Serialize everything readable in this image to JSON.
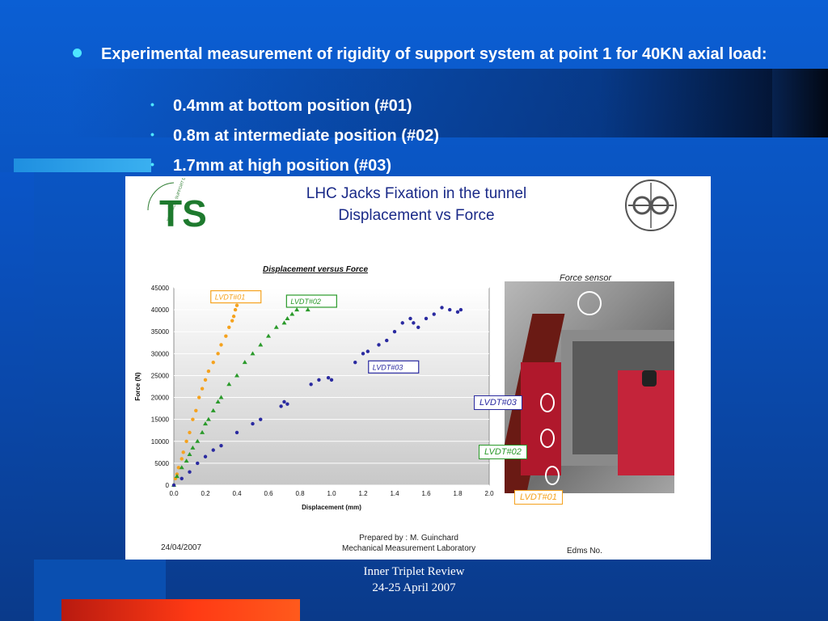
{
  "slide": {
    "bullet": "Experimental measurement of rigidity of support system at point 1 for 40KN axial load:",
    "subs": [
      "0.4mm at bottom position (#01)",
      "0.8m at intermediate position (#02)",
      "1.7mm at high position (#03)"
    ],
    "footer_line1": "Inner Triplet Review",
    "footer_line2": "24-25 April 2007"
  },
  "panel": {
    "logo_text": "TS",
    "logo_ring_text": "TECHNICAL SUPPORT DEPARTMENT",
    "title_line1": "LHC Jacks Fixation in the tunnel",
    "title_line2": "Displacement vs Force",
    "force_sensor_label": "Force sensor",
    "photo_labels": [
      "LVDT#03",
      "LVDT#02",
      "LVDT#01"
    ],
    "date": "24/04/2007",
    "prepared_line1": "Prepared by : M. Guinchard",
    "prepared_line2": "Mechanical Measurement Laboratory",
    "edms": "Edms No."
  },
  "colors": {
    "lvdt01": "#f5a21e",
    "lvdt02": "#2a9a2a",
    "lvdt03": "#2a2aa0",
    "bullet_dot": "#4ee6ff",
    "title": "#1a2a88"
  },
  "chart_data": {
    "type": "scatter",
    "title": "Displacement versus Force",
    "xlabel": "Displacement (mm)",
    "ylabel": "Force (N)",
    "xlim": [
      0.0,
      2.0
    ],
    "ylim": [
      0,
      45000
    ],
    "x_ticks": [
      "0.0",
      "0.2",
      "0.4",
      "0.6",
      "0.8",
      "1.0",
      "1.2",
      "1.4",
      "1.6",
      "1.8",
      "2.0"
    ],
    "y_ticks": [
      "0",
      "5000",
      "10000",
      "15000",
      "20000",
      "25000",
      "30000",
      "35000",
      "40000",
      "45000"
    ],
    "grid": true,
    "series": [
      {
        "name": "LVDT#01",
        "x": [
          0.0,
          0.01,
          0.02,
          0.03,
          0.05,
          0.06,
          0.08,
          0.1,
          0.12,
          0.14,
          0.16,
          0.18,
          0.2,
          0.22,
          0.25,
          0.28,
          0.3,
          0.33,
          0.35,
          0.37,
          0.38,
          0.39,
          0.4
        ],
        "y": [
          0,
          1500,
          2500,
          4000,
          6000,
          7500,
          10000,
          12000,
          15000,
          17000,
          20000,
          22000,
          24000,
          26000,
          28000,
          30000,
          32000,
          34000,
          36000,
          37500,
          38500,
          40000,
          41000
        ]
      },
      {
        "name": "LVDT#02",
        "x": [
          0.0,
          0.02,
          0.05,
          0.08,
          0.1,
          0.12,
          0.15,
          0.18,
          0.2,
          0.22,
          0.25,
          0.28,
          0.3,
          0.35,
          0.4,
          0.45,
          0.5,
          0.55,
          0.6,
          0.65,
          0.7,
          0.72,
          0.75,
          0.78,
          0.8,
          0.85,
          0.88
        ],
        "y": [
          0,
          2000,
          4000,
          5500,
          7000,
          8500,
          10000,
          12000,
          14000,
          15000,
          17000,
          19000,
          20000,
          23000,
          25000,
          28000,
          30000,
          32000,
          34000,
          36000,
          37000,
          38000,
          39000,
          40000,
          41000,
          40000,
          41000
        ]
      },
      {
        "name": "LVDT#03",
        "x": [
          0.0,
          0.05,
          0.1,
          0.15,
          0.2,
          0.25,
          0.3,
          0.4,
          0.5,
          0.55,
          0.68,
          0.7,
          0.72,
          0.87,
          0.92,
          0.98,
          1.0,
          1.15,
          1.2,
          1.23,
          1.3,
          1.35,
          1.4,
          1.45,
          1.5,
          1.52,
          1.55,
          1.6,
          1.65,
          1.7,
          1.75,
          1.8,
          1.82
        ],
        "y": [
          0,
          1500,
          3000,
          5000,
          6500,
          8000,
          9000,
          12000,
          14000,
          15000,
          18000,
          19000,
          18500,
          23000,
          24000,
          24500,
          24000,
          28000,
          30000,
          30500,
          32000,
          33000,
          35000,
          37000,
          38000,
          37000,
          36000,
          38000,
          39000,
          40500,
          40000,
          39500,
          40000
        ]
      }
    ]
  }
}
